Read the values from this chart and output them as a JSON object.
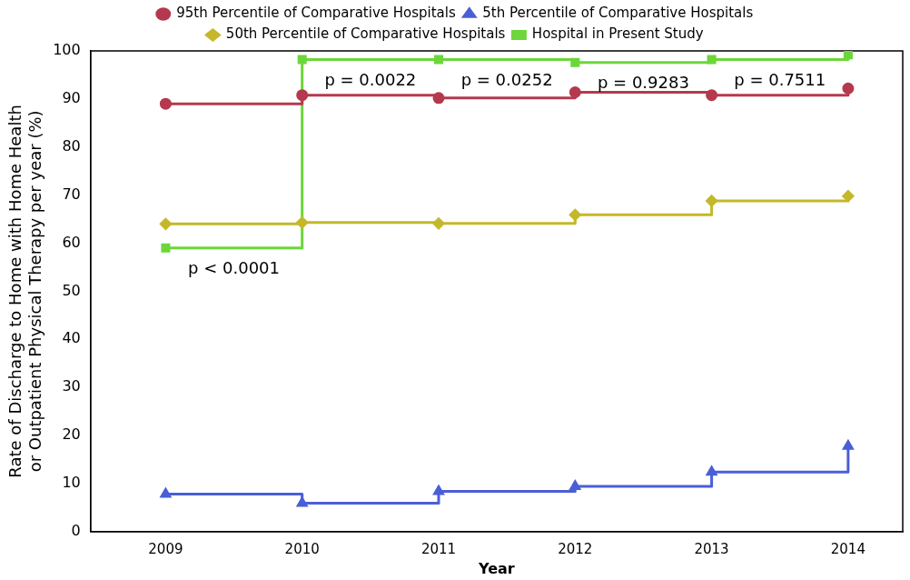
{
  "chart_data": {
    "type": "step",
    "xlabel": "Year",
    "ylabel": "Rate of Discharge to Home with Home Health\nor Outpatient Physical Therapy per year (%)",
    "x": [
      2009,
      2010,
      2011,
      2012,
      2013,
      2014
    ],
    "xlim": [
      2008.45,
      2014.4
    ],
    "xticks": [
      2009,
      2010,
      2011,
      2012,
      2013,
      2014
    ],
    "ylim": [
      0,
      100
    ],
    "yticks": [
      0,
      10,
      20,
      30,
      40,
      50,
      60,
      70,
      80,
      90,
      100
    ],
    "grid": false,
    "legend": "top",
    "series": [
      {
        "name": "95th Percentile of Comparative Hospitals",
        "color": "#b5394e",
        "marker": "circle",
        "values": [
          89,
          90.8,
          90.2,
          91.4,
          90.8,
          92.2
        ]
      },
      {
        "name": "5th Percentile of Comparative Hospitals",
        "color": "#4a5fd6",
        "marker": "triangle",
        "values": [
          7.8,
          5.9,
          8.4,
          9.4,
          12.4,
          17.8
        ]
      },
      {
        "name": "50th Percentile of Comparative Hospitals",
        "color": "#c4b82a",
        "marker": "diamond",
        "values": [
          64,
          64.3,
          64.1,
          65.9,
          68.8,
          69.8
        ]
      },
      {
        "name": "Hospital in Present Study",
        "color": "#6cd63a",
        "marker": "square",
        "values": [
          59,
          98.2,
          98.2,
          97.6,
          98.2,
          99.2
        ]
      }
    ],
    "annotations": [
      "p < 0.0001",
      "p = 0.0022",
      "p = 0.0252",
      "p = 0.9283",
      "p = 0.7511"
    ]
  }
}
